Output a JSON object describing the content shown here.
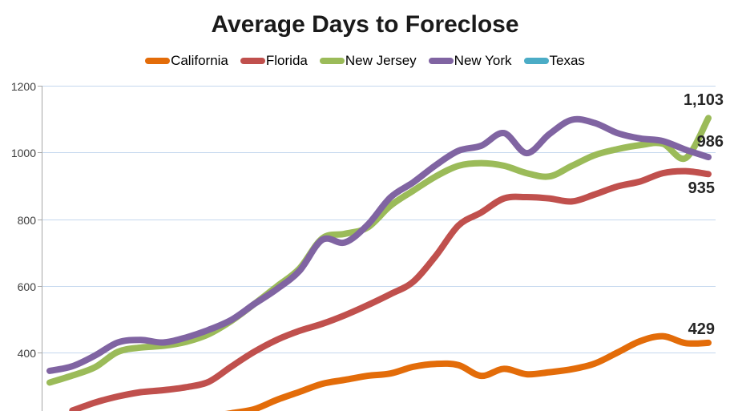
{
  "frame": {
    "border_top_color": "#1b1b1b",
    "border_side_color": "#9b9b9b"
  },
  "title": "Average Days to Foreclose",
  "legend": {
    "position": "top",
    "items": [
      {
        "label": "California",
        "color": "#E36C09"
      },
      {
        "label": "Florida",
        "color": "#C0504D"
      },
      {
        "label": "New Jersey",
        "color": "#9BBB59"
      },
      {
        "label": "New York",
        "color": "#8064A2"
      },
      {
        "label": "Texas",
        "color": "#4BACC6"
      }
    ]
  },
  "chart_data": {
    "type": "line",
    "smoothed": true,
    "title": "Average Days to Foreclose",
    "xlabel": "",
    "ylabel": "",
    "x_labels_visible": false,
    "n_points": 30,
    "grid": true,
    "legend_position": "top",
    "y_axis": {
      "gridline_color": "#c5d8ee",
      "axis_color": "#a6a6a6",
      "visible_ticks": [
        {
          "label": "1200",
          "value": 1200
        },
        {
          "label": "1000",
          "value": 1000
        },
        {
          "label": "800",
          "value": 800
        },
        {
          "label": "600",
          "value": 600
        },
        {
          "label": "400",
          "value": 400
        }
      ],
      "bottom_cropped": true
    },
    "series": [
      {
        "name": "California",
        "color": "#E36C09",
        "end_label": "429",
        "values": [
          null,
          null,
          null,
          null,
          null,
          null,
          null,
          208,
          218,
          230,
          258,
          282,
          306,
          318,
          330,
          337,
          357,
          366,
          362,
          330,
          351,
          335,
          341,
          350,
          367,
          400,
          434,
          449,
          428,
          429
        ]
      },
      {
        "name": "Florida",
        "color": "#C0504D",
        "end_label": "935",
        "values": [
          null,
          226,
          250,
          268,
          281,
          287,
          296,
          312,
          358,
          402,
          438,
          465,
          486,
          512,
          542,
          575,
          612,
          690,
          781,
          820,
          862,
          866,
          862,
          853,
          874,
          898,
          913,
          938,
          944,
          935
        ]
      },
      {
        "name": "New Jersey",
        "color": "#9BBB59",
        "end_label": "1,103",
        "values": [
          310,
          331,
          356,
          402,
          415,
          420,
          432,
          455,
          495,
          545,
          598,
          652,
          742,
          756,
          775,
          840,
          885,
          928,
          960,
          968,
          960,
          938,
          928,
          960,
          992,
          1010,
          1022,
          1026,
          983,
          1103
        ]
      },
      {
        "name": "New York",
        "color": "#8064A2",
        "end_label": "986",
        "values": [
          345,
          359,
          391,
          430,
          438,
          430,
          445,
          468,
          498,
          545,
          590,
          645,
          738,
          730,
          783,
          865,
          910,
          962,
          1005,
          1020,
          1058,
          998,
          1055,
          1098,
          1088,
          1058,
          1042,
          1034,
          1008,
          986
        ]
      },
      {
        "name": "Texas",
        "color": "#4BACC6",
        "end_label": null,
        "values": [],
        "note": "series listed in legend; line lies below the cropped bottom edge of the image"
      }
    ],
    "end_labels": [
      {
        "text": "1,103",
        "series": "New Jersey"
      },
      {
        "text": "986",
        "series": "New York"
      },
      {
        "text": "935",
        "series": "Florida"
      },
      {
        "text": "429",
        "series": "California"
      }
    ]
  }
}
